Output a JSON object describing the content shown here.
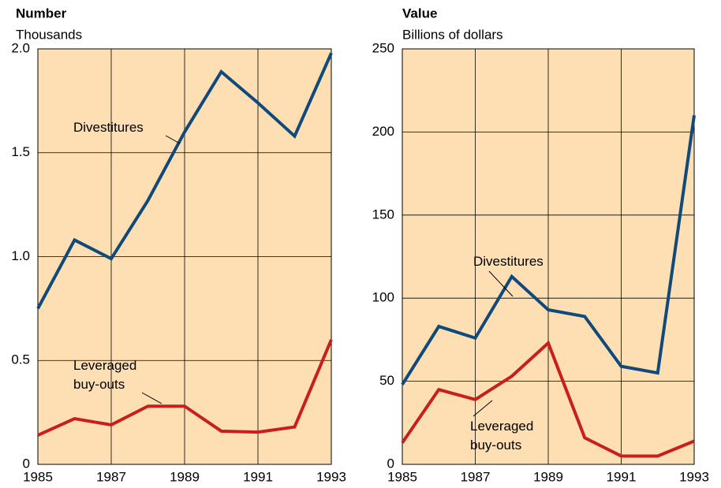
{
  "chart_data": [
    {
      "type": "line",
      "title": "Number",
      "subtitle": "Thousands",
      "x": [
        1985,
        1986,
        1987,
        1988,
        1989,
        1990,
        1991,
        1992,
        1993
      ],
      "series": [
        {
          "name": "Divestitures",
          "color": "#0f4a7a",
          "values": [
            0.75,
            1.08,
            0.99,
            1.27,
            1.6,
            1.89,
            1.74,
            1.58,
            1.98
          ]
        },
        {
          "name": "Leveraged buy-outs",
          "color": "#c81e1e",
          "values": [
            0.14,
            0.22,
            0.19,
            0.28,
            0.28,
            0.16,
            0.155,
            0.18,
            0.6
          ]
        }
      ],
      "xlim": [
        1985,
        1993
      ],
      "xticks": [
        1985,
        1987,
        1989,
        1991,
        1993
      ],
      "ylim": [
        0,
        2
      ],
      "yticks": [
        0,
        0.5,
        {
          "value": 1,
          "label": "1.0"
        },
        1.5,
        {
          "value": 2,
          "label": "2.0"
        }
      ],
      "grid": true,
      "background": "#fddfb3"
    },
    {
      "type": "line",
      "title": "Value",
      "subtitle": "Billions of dollars",
      "x": [
        1985,
        1986,
        1987,
        1988,
        1989,
        1990,
        1991,
        1992,
        1993
      ],
      "series": [
        {
          "name": "Divestitures",
          "color": "#0f4a7a",
          "values": [
            48,
            83,
            76,
            113,
            93,
            89,
            59,
            55,
            210
          ]
        },
        {
          "name": "Leveraged buy-outs",
          "color": "#c81e1e",
          "values": [
            13,
            45,
            39,
            53,
            73,
            16,
            5,
            5,
            14
          ]
        }
      ],
      "xlim": [
        1985,
        1993
      ],
      "xticks": [
        1985,
        1987,
        1989,
        1991,
        1993
      ],
      "ylim": [
        0,
        250
      ],
      "yticks": [
        0,
        50,
        100,
        150,
        200,
        250
      ],
      "grid": true,
      "background": "#fddfb3"
    }
  ]
}
